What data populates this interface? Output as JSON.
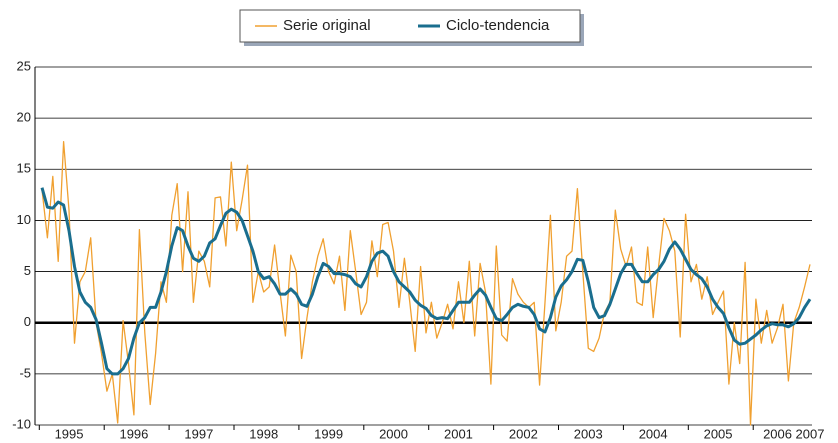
{
  "chart_data": {
    "type": "line",
    "categories": [
      null,
      null,
      null,
      null,
      null,
      "1995",
      null,
      null,
      null,
      null,
      null,
      null,
      null,
      null,
      null,
      null,
      null,
      "1996",
      null,
      null,
      null,
      null,
      null,
      null,
      null,
      null,
      null,
      null,
      null,
      "1997",
      null,
      null,
      null,
      null,
      null,
      null,
      null,
      null,
      null,
      null,
      null,
      "1998",
      null,
      null,
      null,
      null,
      null,
      null,
      null,
      null,
      null,
      null,
      null,
      "1999",
      null,
      null,
      null,
      null,
      null,
      null,
      null,
      null,
      null,
      null,
      null,
      "2000",
      null,
      null,
      null,
      null,
      null,
      null,
      null,
      null,
      null,
      null,
      null,
      "2001",
      null,
      null,
      null,
      null,
      null,
      null,
      null,
      null,
      null,
      null,
      null,
      "2002",
      null,
      null,
      null,
      null,
      null,
      null,
      null,
      null,
      null,
      null,
      null,
      "2003",
      null,
      null,
      null,
      null,
      null,
      null,
      null,
      null,
      null,
      null,
      null,
      "2004",
      null,
      null,
      null,
      null,
      null,
      null,
      null,
      null,
      null,
      null,
      null,
      "2005",
      null,
      null,
      null,
      null,
      null,
      null,
      null,
      null,
      null,
      null,
      "2006",
      null,
      null,
      null,
      null,
      null,
      "2007"
    ],
    "series": [
      {
        "name": "Serie original",
        "color": "#f0a030",
        "values": [
          13,
          8.3,
          14.3,
          6,
          17.7,
          11,
          -2,
          4,
          5,
          8.3,
          0,
          -3,
          -6.7,
          -5,
          -9.8,
          0.2,
          -4,
          -9,
          9.1,
          -1,
          -8,
          -3,
          4,
          2,
          10.5,
          13.6,
          5,
          12.8,
          2,
          7,
          6,
          3.5,
          12.2,
          12.3,
          7.5,
          15.7,
          9,
          12,
          15.4,
          2,
          5,
          3,
          3.5,
          7.6,
          3,
          -1.3,
          6.6,
          5,
          -3.5,
          0.5,
          4,
          6.5,
          8.2,
          5,
          3.8,
          6.5,
          1.2,
          9,
          5,
          0.8,
          2,
          8,
          4.5,
          9.6,
          9.8,
          7,
          1.5,
          6.3,
          2,
          -2.8,
          5.5,
          -1,
          2,
          -1.5,
          0,
          1.8,
          -0.6,
          4,
          0,
          6,
          -1.3,
          5.8,
          3,
          -6,
          7.5,
          -1.2,
          -1.8,
          4.3,
          2.8,
          2,
          1.5,
          2,
          -6.1,
          2,
          10.5,
          -0.8,
          2,
          6.5,
          7,
          13.1,
          5,
          -2.5,
          -2.8,
          -1.5,
          1,
          2,
          11,
          7.2,
          5.5,
          7.4,
          2,
          1.7,
          7.4,
          0.5,
          5.5,
          10.2,
          9,
          7,
          -1.4,
          10.6,
          4,
          5.7,
          2.3,
          4.5,
          0.8,
          2,
          3.1,
          -6,
          0,
          -4,
          5.9,
          -10,
          2.3,
          -2,
          1.2,
          -2,
          -0.5,
          1.8,
          -5.7,
          0,
          1.5,
          3.5,
          5.7
        ]
      },
      {
        "name": "Ciclo-tendencia",
        "color": "#1a6e8e",
        "values": [
          13.2,
          11.3,
          11.2,
          11.8,
          11.5,
          9,
          5.5,
          3,
          2,
          1.5,
          0.3,
          -2,
          -4.5,
          -5,
          -5,
          -4.5,
          -3.5,
          -1.5,
          0,
          0.5,
          1.5,
          1.5,
          3,
          5,
          7.5,
          9.3,
          9,
          7.5,
          6.3,
          6,
          6.5,
          7.8,
          8.2,
          9.5,
          10.7,
          11.1,
          10.8,
          10,
          8.5,
          7,
          5,
          4.3,
          4.5,
          3.8,
          2.8,
          2.8,
          3.3,
          2.8,
          1.8,
          1.6,
          2.8,
          4.5,
          5.8,
          5.5,
          4.8,
          4.8,
          4.7,
          4.5,
          3.8,
          3.5,
          4.5,
          6,
          6.8,
          7,
          6.5,
          5,
          4,
          3.5,
          3,
          2.2,
          1.7,
          1.4,
          0.7,
          0.4,
          0.5,
          0.4,
          1.2,
          2,
          2,
          2,
          2.7,
          3.3,
          2.7,
          1.5,
          0.4,
          0.2,
          0.8,
          1.5,
          1.8,
          1.6,
          1.5,
          0.8,
          -0.6,
          -0.9,
          0.5,
          2.5,
          3.6,
          4.2,
          5,
          6.2,
          6.1,
          4,
          1.5,
          0.5,
          0.7,
          1.8,
          3.3,
          4.8,
          5.7,
          5.7,
          4.8,
          4,
          4,
          4.7,
          5.2,
          6,
          7.2,
          7.9,
          7.2,
          6.2,
          5.2,
          4.7,
          4.3,
          3.5,
          2.3,
          1.5,
          0.9,
          -0.5,
          -1.7,
          -2.1,
          -2,
          -1.6,
          -1.2,
          -0.7,
          -0.3,
          -0.1,
          -0.2,
          -0.2,
          -0.4,
          -0.1,
          0.5,
          1.5,
          2.3
        ]
      }
    ],
    "ylim": [
      -10,
      25
    ],
    "yticks": [
      -10,
      -5,
      0,
      5,
      10,
      15,
      20,
      25
    ],
    "grid": true,
    "legend": "top"
  }
}
